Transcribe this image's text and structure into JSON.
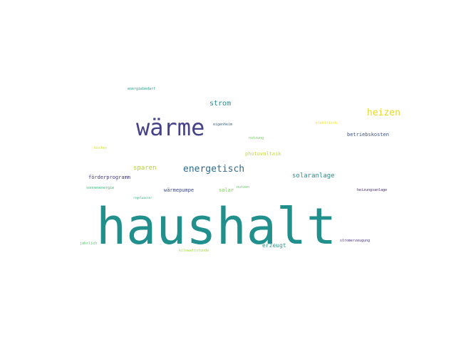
{
  "wordcloud": {
    "words": [
      {
        "text": "haushalt",
        "color": "#21908c"
      },
      {
        "text": "wärme",
        "color": "#46428a"
      },
      {
        "text": "heizen",
        "color": "#e8d826"
      },
      {
        "text": "energetisch",
        "color": "#2e6b8e"
      },
      {
        "text": "strom",
        "color": "#2a8c8a"
      },
      {
        "text": "solaranlage",
        "color": "#2a8c8a"
      },
      {
        "text": "sparen",
        "color": "#b5d334"
      },
      {
        "text": "photovoltaik",
        "color": "#c7dc2c"
      },
      {
        "text": "förderprogramm",
        "color": "#443a83"
      },
      {
        "text": "wärmepumpe",
        "color": "#3e4a89"
      },
      {
        "text": "solar",
        "color": "#7ad151"
      },
      {
        "text": "erzeugt",
        "color": "#2c9a84"
      },
      {
        "text": "betriebskosten",
        "color": "#3b528b"
      },
      {
        "text": "nutzung",
        "color": "#6ccd5a"
      },
      {
        "text": "eigenheim",
        "color": "#31668e"
      },
      {
        "text": "elektrisch",
        "color": "#f0e11f"
      },
      {
        "text": "kosten",
        "color": "#d5e21a"
      },
      {
        "text": "energiebedarf",
        "color": "#1f9e89"
      },
      {
        "text": "sonnenenergie",
        "color": "#35b779"
      },
      {
        "text": "nutzen",
        "color": "#5ec962"
      },
      {
        "text": "regelwasser",
        "color": "#27ad81"
      },
      {
        "text": "heizungsanlage",
        "color": "#482979"
      },
      {
        "text": "stromerzeugung",
        "color": "#46327e"
      },
      {
        "text": "jährlich",
        "color": "#52c569"
      },
      {
        "text": "kilowattstunde",
        "color": "#9fda3a"
      }
    ]
  }
}
